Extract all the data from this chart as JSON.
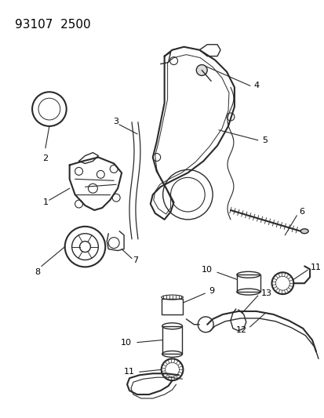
{
  "title": "93107  2500",
  "bg_color": "#ffffff",
  "fig_width": 4.14,
  "fig_height": 5.33,
  "dpi": 100,
  "line_color": "#2a2a2a",
  "title_fontsize": 11,
  "label_fontsize": 8
}
